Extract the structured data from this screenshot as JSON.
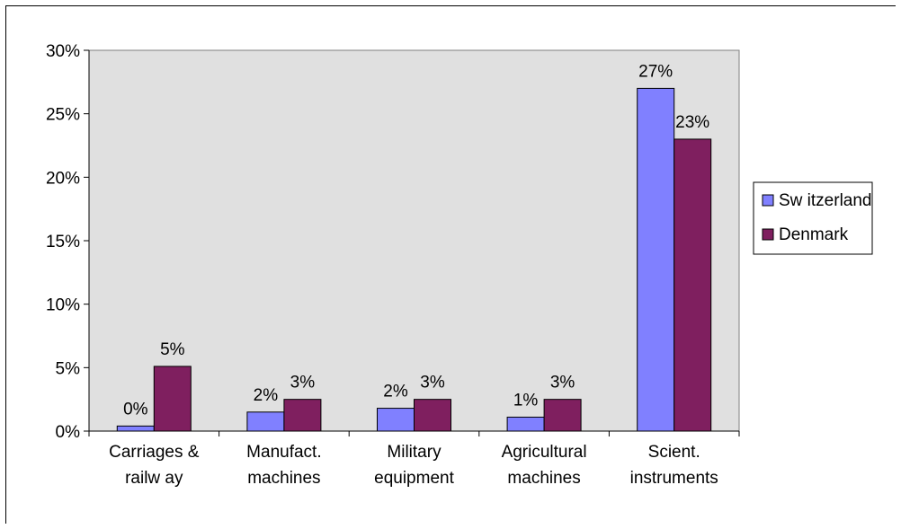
{
  "chart_data": {
    "type": "bar",
    "categories": [
      [
        "Carriages &",
        "railw ay"
      ],
      [
        "Manufact.",
        "machines"
      ],
      [
        "Military",
        "equipment"
      ],
      [
        "Agricultural",
        "machines"
      ],
      [
        "Scient.",
        "instruments"
      ]
    ],
    "series": [
      {
        "name": "Sw itzerland",
        "color": "#8080ff",
        "values": [
          0.4,
          1.5,
          1.8,
          1.1,
          27
        ],
        "labels": [
          "0%",
          "2%",
          "2%",
          "1%",
          "27%"
        ]
      },
      {
        "name": "Denmark",
        "color": "#7f1f5f",
        "values": [
          5.1,
          2.5,
          2.5,
          2.5,
          23
        ],
        "labels": [
          "5%",
          "3%",
          "3%",
          "3%",
          "23%"
        ]
      }
    ],
    "ylim": [
      0,
      30
    ],
    "yticks": [
      "0%",
      "5%",
      "10%",
      "15%",
      "20%",
      "25%",
      "30%"
    ],
    "ytick_values": [
      0,
      5,
      10,
      15,
      20,
      25,
      30
    ],
    "plot_background": "#e0e0e0",
    "grid": false,
    "legend_position": "right"
  }
}
